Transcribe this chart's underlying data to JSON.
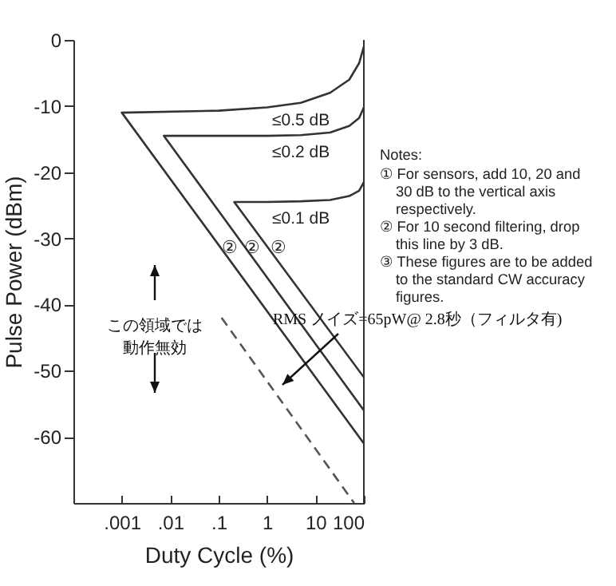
{
  "chart_data": {
    "type": "line",
    "xlabel": "Duty Cycle (%)",
    "ylabel": "Pulse Power (dBm)",
    "log": "x",
    "xlim": [
      0.0001,
      100
    ],
    "xticks": [
      {
        "value": 0.001,
        "label": ".001"
      },
      {
        "value": 0.01,
        "label": ".01"
      },
      {
        "value": 0.1,
        "label": ".1"
      },
      1,
      10,
      100
    ],
    "ylim": [
      -70,
      0
    ],
    "yticks": [
      0,
      -10,
      -20,
      -30,
      -40,
      -50,
      -60
    ],
    "series": [
      {
        "name": "≤0.5 dB",
        "color": "#333333",
        "x": [
          100,
          80,
          50,
          20,
          5,
          1,
          0.1,
          0.001,
          100
        ],
        "values": [
          -1,
          -3.5,
          -6,
          -8,
          -9.5,
          -10.2,
          -10.7,
          -11,
          -61
        ]
      },
      {
        "name": "≤0.2 dB",
        "color": "#333333",
        "x": [
          100,
          80,
          50,
          20,
          5,
          1,
          0.0074,
          100
        ],
        "values": [
          -10.2,
          -11.8,
          -13,
          -14,
          -14.4,
          -14.5,
          -14.5,
          -56
        ]
      },
      {
        "name": "≤0.1 dB",
        "color": "#333333",
        "x": [
          100,
          80,
          50,
          20,
          5,
          1,
          0.21,
          100
        ],
        "values": [
          -21.5,
          -22.8,
          -23.6,
          -24.2,
          -24.4,
          -24.5,
          -24.5,
          -51
        ]
      },
      {
        "color": "#555555",
        "line_style": "dashed",
        "x": [
          0.115,
          63
        ],
        "values": [
          -42,
          -70
        ]
      }
    ],
    "annotations": [
      "Notes:",
      "① For sensors, add 10, 20 and 30 dB to the vertical axis respectively.",
      "② For 10 second filtering, drop this line by 3 dB.",
      "③ These figures are to be added to the standard CW accuracy figures.",
      "この領域では動作無効",
      "RMS ノイズ=65pW@ 2.8秒（フィルタ有)",
      {
        "text": "②",
        "x": 0.17,
        "y": -31.5
      },
      {
        "text": "②",
        "x": 0.5,
        "y": -31.5
      },
      {
        "text": "②",
        "x": 1.7,
        "y": -31.5
      }
    ]
  }
}
